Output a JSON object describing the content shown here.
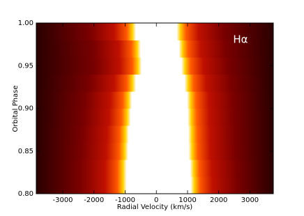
{
  "chart_data": {
    "type": "trailed-spectrum",
    "annotation": "Hα",
    "xlabel": "Radial Velocity (km/s)",
    "ylabel": "Orbital Phase",
    "xlim": [
      -3850,
      3750
    ],
    "xticks": [
      -3000,
      -2000,
      -1000,
      0,
      1000,
      2000,
      3000
    ],
    "ylim": [
      0.8,
      1.0
    ],
    "yticks": [
      {
        "value": 0.8,
        "label": "0.80"
      },
      {
        "value": 0.85,
        "label": "0.85"
      },
      {
        "value": 0.9,
        "label": "0.90"
      },
      {
        "value": 0.95,
        "label": "0.95"
      },
      {
        "value": 1.0,
        "label": "1.00"
      }
    ],
    "y": [
      0.81,
      0.83,
      0.85,
      0.87,
      0.89,
      0.91,
      0.93,
      0.95,
      0.97,
      0.99
    ],
    "edges": [
      [
        -950,
        1100
      ],
      [
        -950,
        1080
      ],
      [
        -900,
        1030
      ],
      [
        -880,
        1020
      ],
      [
        -820,
        1000
      ],
      [
        -780,
        980
      ],
      [
        -650,
        900
      ],
      [
        -470,
        800
      ],
      [
        -500,
        720
      ],
      [
        -650,
        650
      ]
    ]
  }
}
